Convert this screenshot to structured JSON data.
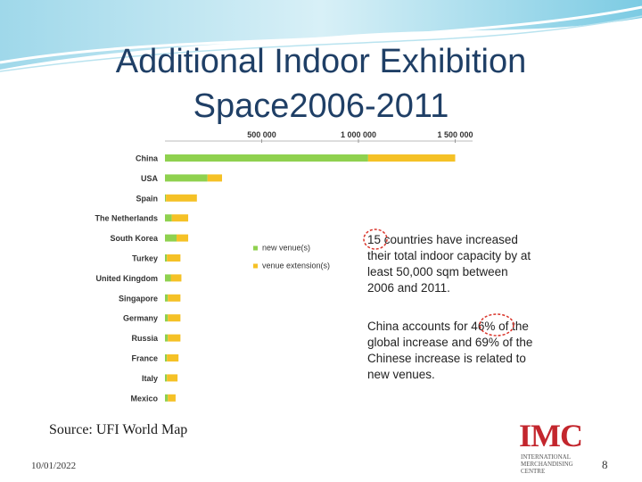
{
  "slide": {
    "title_line1": "Additional Indoor Exhibition",
    "title_line2": "Space2006-2011",
    "source": "Source: UFI World Map",
    "date": "10/01/2022",
    "page_number": "8",
    "logo": {
      "main": "IMC",
      "sub_line1": "INTERNATIONAL",
      "sub_line2": "MERCHANDISING CENTRE"
    }
  },
  "chart_data": {
    "type": "bar",
    "orientation": "horizontal",
    "stacked": true,
    "title": "",
    "xlabel": "",
    "ylabel": "",
    "xlim": [
      0,
      1600000
    ],
    "x_ticks": [
      500000,
      1000000,
      1500000
    ],
    "x_tick_labels": [
      "500 000",
      "1 000 000",
      "1 500 000"
    ],
    "x_axis_position": "top",
    "grid": false,
    "legend_position": "right",
    "categories": [
      "China",
      "USA",
      "Spain",
      "The Netherlands",
      "South Korea",
      "Turkey",
      "United Kingdom",
      "Singapore",
      "Germany",
      "Russia",
      "France",
      "Italy",
      "Mexico"
    ],
    "series": [
      {
        "name": "new venue(s)",
        "color": "#8fd14f",
        "values": [
          1050000,
          220000,
          5000,
          35000,
          60000,
          10000,
          30000,
          15000,
          15000,
          15000,
          10000,
          10000,
          15000
        ]
      },
      {
        "name": "venue extension(s)",
        "color": "#f5c126",
        "values": [
          450000,
          75000,
          160000,
          85000,
          60000,
          70000,
          55000,
          65000,
          65000,
          65000,
          60000,
          55000,
          40000
        ]
      }
    ],
    "annotations": [
      {
        "text": "15 countries have increased their total indoor capacity by at least 50,000 sqm between 2006 and 2011.",
        "highlight": "15"
      },
      {
        "text": "China accounts for 46% of the global increase and 69% of the Chinese increase is related to new venues.",
        "highlight": "46%"
      }
    ]
  }
}
